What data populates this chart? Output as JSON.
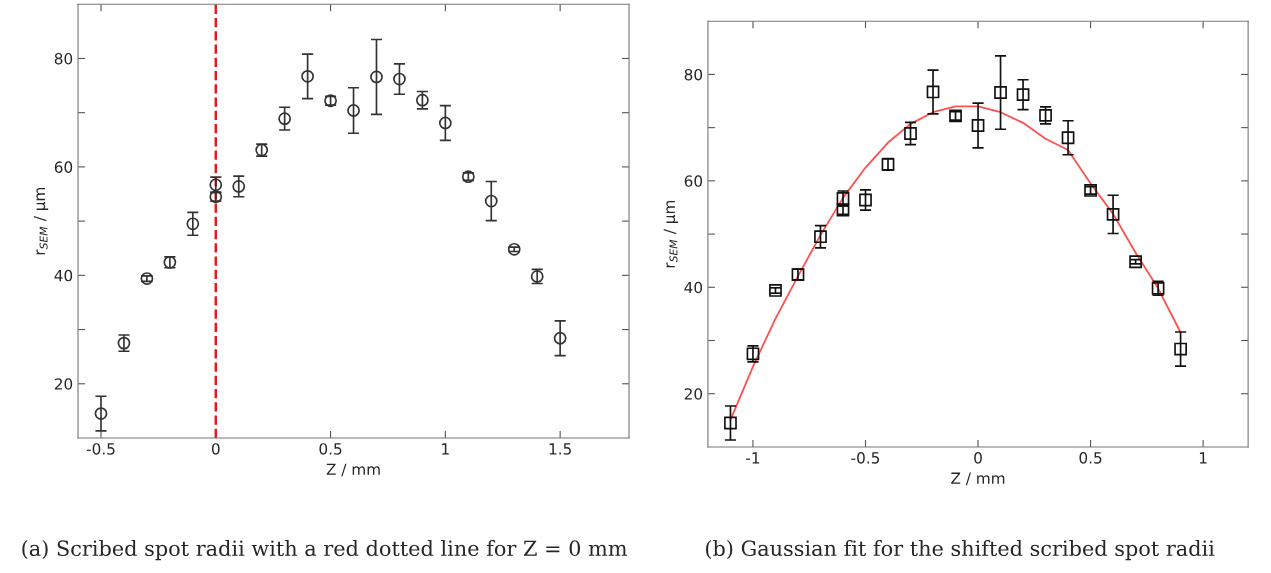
{
  "chart_data": [
    {
      "type": "scatter",
      "xlabel": "Z / mm",
      "ylabel": "r$_{SEM}$ / µm",
      "xlim": [
        -0.6,
        1.8
      ],
      "xticks": [
        -0.5,
        0,
        0.5,
        1,
        1.5
      ],
      "ylim": [
        10,
        90
      ],
      "yticks": [
        20,
        {
          "value": 30,
          "label": null
        },
        40,
        {
          "value": 50,
          "label": null
        },
        60,
        {
          "value": 70,
          "label": null
        },
        80
      ],
      "grid": false,
      "legend": false,
      "marker": "circle",
      "series": [
        {
          "color": "#333333",
          "x": [
            -0.5,
            -0.4,
            -0.3,
            -0.2,
            -0.1,
            0,
            0,
            0.1,
            0.2,
            0.3,
            0.4,
            0.5,
            0.6,
            0.7,
            0.8,
            0.9,
            1.0,
            1.1,
            1.2,
            1.3,
            1.4,
            1.5
          ],
          "values": [
            14.5,
            27.5,
            39.4,
            42.4,
            49.5,
            56.7,
            54.5,
            56.4,
            63.1,
            68.9,
            76.7,
            72.2,
            70.4,
            76.6,
            76.2,
            72.3,
            68.1,
            58.2,
            53.7,
            44.8,
            39.8,
            28.4
          ],
          "errors": [
            3.2,
            1.5,
            0.5,
            1,
            2.1,
            1.4,
            0.8,
            1.9,
            1.1,
            2.1,
            4.1,
            0.8,
            4.2,
            6.9,
            2.8,
            1.6,
            3.2,
            0.7,
            3.6,
            0.4,
            1.3,
            3.2
          ]
        }
      ],
      "ref_lines": [
        {
          "axis": "x",
          "value": 0,
          "color": "#e41a1c",
          "line_style": "dashed"
        }
      ],
      "annotations": [
        "(a) Scribed spot radii with a red dotted line for Z = 0 mm"
      ]
    },
    {
      "type": "scatter",
      "xlabel": "Z / mm",
      "ylabel": "r$_{SEM}$ / µm",
      "xlim": [
        -1.2,
        1.2
      ],
      "xticks": [
        -1,
        -0.5,
        0,
        0.5,
        1
      ],
      "ylim": [
        10,
        90
      ],
      "yticks": [
        20,
        {
          "value": 30,
          "label": null
        },
        40,
        {
          "value": 50,
          "label": null
        },
        60,
        {
          "value": 70,
          "label": null
        },
        80
      ],
      "grid": false,
      "legend": false,
      "marker": "square",
      "series": [
        {
          "color": "#111111",
          "x": [
            -1.1,
            -1.0,
            -0.9,
            -0.8,
            -0.7,
            -0.6,
            -0.6,
            -0.5,
            -0.4,
            -0.3,
            -0.2,
            -0.1,
            0,
            0.1,
            0.2,
            0.3,
            0.4,
            0.5,
            0.6,
            0.7,
            0.8,
            0.9
          ],
          "values": [
            14.5,
            27.5,
            39.4,
            42.4,
            49.5,
            56.7,
            54.5,
            56.4,
            63.1,
            68.9,
            76.7,
            72.2,
            70.4,
            76.6,
            76.2,
            72.3,
            68.1,
            58.2,
            53.7,
            44.8,
            39.8,
            28.4
          ],
          "errors": [
            3.2,
            1.5,
            0.5,
            1,
            2.1,
            1.4,
            0.8,
            1.9,
            1.1,
            2.1,
            4.1,
            0.8,
            4.2,
            6.9,
            2.8,
            1.6,
            3.2,
            0.7,
            3.6,
            0.4,
            1.3,
            3.2
          ]
        },
        {
          "type": "line",
          "marker": "none",
          "color": "#ff5050",
          "x": [
            -1.1,
            -1.0,
            -0.9,
            -0.8,
            -0.7,
            -0.6,
            -0.5,
            -0.4,
            -0.3,
            -0.2,
            -0.1,
            0,
            0.1,
            0.2,
            0.3,
            0.4,
            0.5,
            0.6,
            0.7,
            0.8,
            0.9
          ],
          "values": [
            15.1,
            25.1,
            34.1,
            42.1,
            49.8,
            56.8,
            62.5,
            67.2,
            70.7,
            72.9,
            74.0,
            74.0,
            72.9,
            70.9,
            67.9,
            65.8,
            59.5,
            53.8,
            46.5,
            39.8,
            31.5
          ]
        }
      ],
      "annotations": [
        "(b) Gaussian fit for the shifted scribed spot radii"
      ]
    }
  ]
}
